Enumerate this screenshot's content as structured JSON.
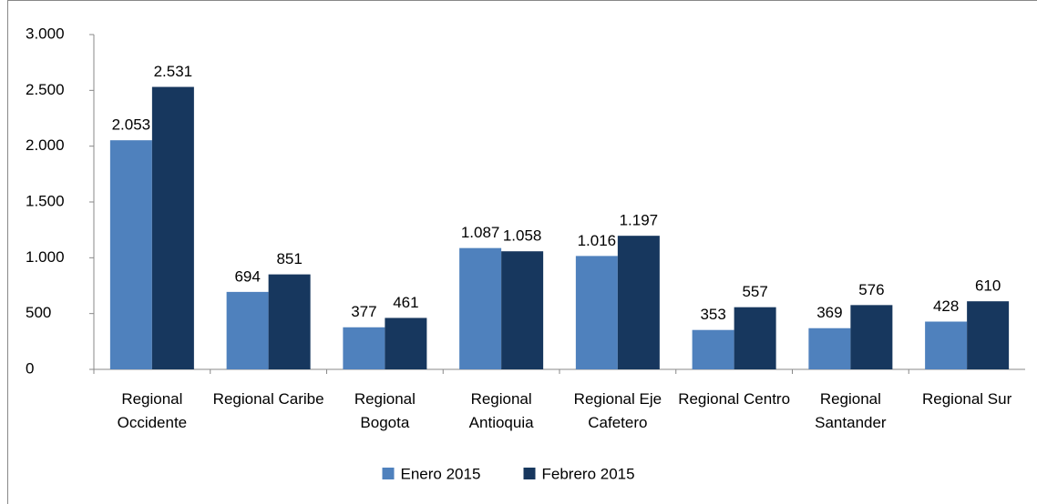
{
  "chart_data": {
    "type": "bar",
    "categories": [
      "Regional Occidente",
      "Regional Caribe",
      "Regional Bogota",
      "Regional Antioquia",
      "Regional Eje Cafetero",
      "Regional Centro",
      "Regional Santander",
      "Regional Sur"
    ],
    "series": [
      {
        "name": "Enero 2015",
        "color": "#4f81bd",
        "values": [
          2053,
          694,
          377,
          1087,
          1016,
          353,
          369,
          428
        ],
        "value_labels": [
          "2.053",
          "694",
          "377",
          "1.087",
          "1.016",
          "353",
          "369",
          "428"
        ]
      },
      {
        "name": "Febrero 2015",
        "color": "#17375e",
        "values": [
          2531,
          851,
          461,
          1058,
          1197,
          557,
          576,
          610
        ],
        "value_labels": [
          "2.531",
          "851",
          "461",
          "1.058",
          "1.197",
          "557",
          "576",
          "610"
        ]
      }
    ],
    "ylim": [
      0,
      3000
    ],
    "yticks": [
      0,
      500,
      {
        "value": 1000,
        "label": "1.000"
      },
      {
        "value": 1500,
        "label": "1.500"
      },
      {
        "value": 2000,
        "label": "2.000"
      },
      {
        "value": 2500,
        "label": "2.500"
      },
      {
        "value": 3000,
        "label": "3.000"
      }
    ],
    "legend": "bottom"
  }
}
